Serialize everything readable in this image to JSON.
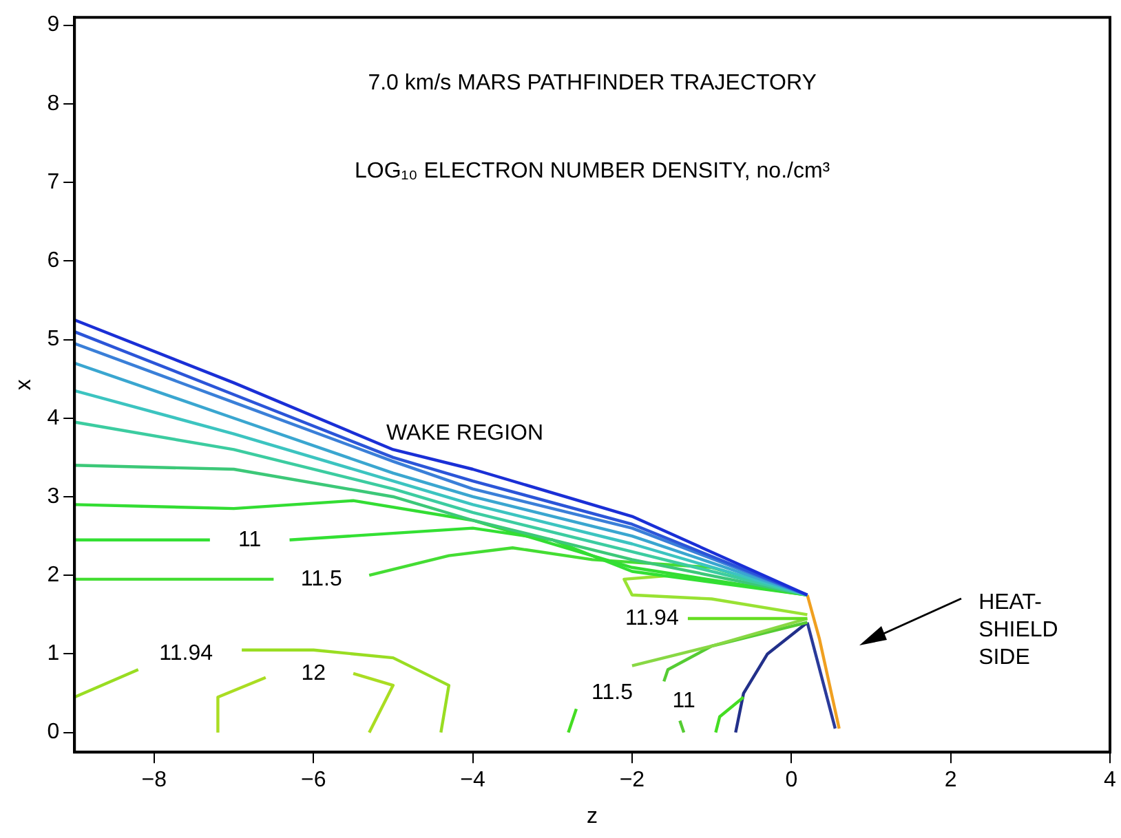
{
  "chart_data": {
    "type": "line",
    "title": "7.0 km/s MARS PATHFINDER TRAJECTORY",
    "subtitle": "LOG₁₀ ELECTRON NUMBER DENSITY, no./cm³",
    "xlabel": "z",
    "ylabel": "x",
    "xlim": [
      -9,
      4
    ],
    "xticks": [
      {
        "value": -8,
        "label": "−8"
      },
      {
        "value": -6,
        "label": "−6"
      },
      {
        "value": -4,
        "label": "−4"
      },
      {
        "value": -2,
        "label": "−2"
      },
      0,
      2,
      4
    ],
    "ylim": [
      -0.25,
      9.1
    ],
    "yticks": [
      0,
      1,
      2,
      3,
      4,
      5,
      6,
      7,
      8,
      9
    ],
    "grid": false,
    "legend": false,
    "marker": "none",
    "line_style": "solid",
    "series": [
      {
        "color": "#1a2fd6",
        "x": [
          -9,
          -7,
          -5,
          -4,
          -2,
          0.2
        ],
        "values": [
          5.25,
          4.45,
          3.6,
          3.35,
          2.75,
          1.75
        ]
      },
      {
        "color": "#2b55d8",
        "x": [
          -9,
          -7,
          -5,
          -4,
          -2,
          0.2
        ],
        "values": [
          5.1,
          4.3,
          3.5,
          3.2,
          2.65,
          1.75
        ]
      },
      {
        "color": "#3a7fd8",
        "x": [
          -9,
          -7,
          -5,
          -4,
          -2,
          0.2
        ],
        "values": [
          4.95,
          4.2,
          3.45,
          3.1,
          2.6,
          1.75
        ]
      },
      {
        "color": "#3aa6d0",
        "x": [
          -9,
          -7,
          -5,
          -4,
          -2,
          0.2
        ],
        "values": [
          4.7,
          4.0,
          3.3,
          3.0,
          2.5,
          1.75
        ]
      },
      {
        "color": "#3cc4c0",
        "x": [
          -9,
          -7,
          -5,
          -4,
          -2,
          0.2
        ],
        "values": [
          4.35,
          3.8,
          3.2,
          2.9,
          2.4,
          1.75
        ]
      },
      {
        "color": "#3ccca0",
        "x": [
          -9,
          -7,
          -5,
          -4,
          -2,
          0.2
        ],
        "values": [
          3.95,
          3.6,
          3.1,
          2.8,
          2.3,
          1.75
        ]
      },
      {
        "color": "#3cc878",
        "x": [
          -9,
          -7,
          -5,
          -4,
          -2,
          0.2
        ],
        "values": [
          3.4,
          3.35,
          3.0,
          2.7,
          2.2,
          1.75
        ]
      },
      {
        "color": "#33dd33",
        "x": [
          -9,
          -7,
          -5.5,
          -4,
          -2,
          0.2
        ],
        "values": [
          2.9,
          2.85,
          2.95,
          2.7,
          2.1,
          1.75
        ]
      },
      {
        "color": "#33e033",
        "x": [
          -9,
          -7.3,
          -6.8,
          -6.3,
          -4,
          -3,
          -2,
          0.2
        ],
        "values": [
          2.45,
          2.45,
          null,
          2.45,
          2.6,
          2.45,
          2.05,
          1.75
        ]
      },
      {
        "color": "#44dd33",
        "x": [
          -9,
          -6.5,
          -5.9,
          -5.3,
          -4.3,
          -3.5,
          -2.5,
          -1,
          0.2
        ],
        "values": [
          1.95,
          1.95,
          null,
          2.0,
          2.25,
          2.35,
          2.2,
          2.1,
          1.75
        ]
      },
      {
        "color": "#99e233",
        "x": [
          0.2,
          -1.5,
          -2.1,
          -2.0,
          -1,
          0.2
        ],
        "values": [
          1.75,
          2.0,
          1.95,
          1.75,
          1.7,
          1.5
        ]
      },
      {
        "color": "#66dd22",
        "x": [
          -1.3,
          0.2
        ],
        "values": [
          1.45,
          1.45
        ]
      },
      {
        "color": "#88d844",
        "x": [
          -2,
          -1,
          0.2
        ],
        "values": [
          0.85,
          1.1,
          1.45
        ]
      },
      {
        "color": "#55cc33",
        "x": [
          -1.35,
          -1.4,
          -1.45,
          -1.6,
          -1.55,
          -1,
          0.2
        ],
        "values": [
          0,
          0.15,
          null,
          0.65,
          0.8,
          1.1,
          1.4
        ]
      },
      {
        "color": "#44dd22",
        "x": [
          -2.8,
          -2.7
        ],
        "values": [
          0,
          0.3
        ]
      },
      {
        "color": "#99dd22",
        "x": [
          -9,
          -8.2,
          -7.6,
          -6.9,
          -6,
          -5,
          -4.3,
          -4.4
        ],
        "values": [
          0.45,
          0.8,
          null,
          1.05,
          1.05,
          0.95,
          0.6,
          0
        ]
      },
      {
        "color": "#aadd22",
        "x": [
          -7.2,
          -7.2,
          -6.6,
          -6.0,
          -5.5,
          -5.0,
          -5.3
        ],
        "values": [
          0,
          0.45,
          0.7,
          null,
          0.75,
          0.6,
          0
        ]
      },
      {
        "color": "#44dd22",
        "x": [
          -0.95,
          -0.9,
          -0.6
        ],
        "values": [
          0,
          0.2,
          0.45
        ]
      },
      {
        "color": "#22308a",
        "x": [
          -0.7,
          -0.6,
          -0.3,
          0.2
        ],
        "values": [
          0,
          0.5,
          1.0,
          1.4
        ]
      },
      {
        "color": "#2a3a9a",
        "x": [
          0.2,
          0.55
        ],
        "values": [
          1.4,
          0.05
        ]
      },
      {
        "color": "#f0a020",
        "x": [
          0.2,
          0.35,
          0.6
        ],
        "values": [
          1.75,
          1.2,
          0.05
        ]
      }
    ],
    "annotations": [
      "WAKE REGION",
      "HEAT-\nSHIELD\nSIDE",
      {
        "text": "11",
        "x": -6.8,
        "y": 2.45
      },
      {
        "text": "11.5",
        "x": -5.9,
        "y": 1.95
      },
      {
        "text": "11.94",
        "x": -7.6,
        "y": 1.0
      },
      {
        "text": "12",
        "x": -6.0,
        "y": 0.75
      },
      {
        "text": "11.94",
        "x": -1.75,
        "y": 1.45
      },
      {
        "text": "11.5",
        "x": -2.25,
        "y": 0.5
      },
      {
        "text": "11",
        "x": -1.35,
        "y": 0.4
      }
    ]
  }
}
